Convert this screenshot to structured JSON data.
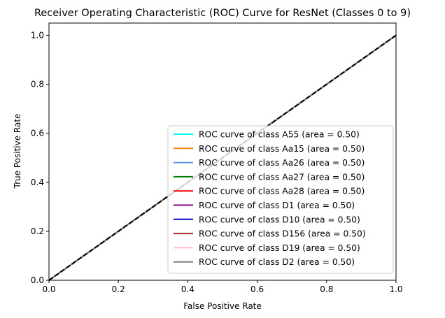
{
  "chart_data": {
    "type": "line",
    "title": "Receiver Operating Characteristic (ROC) Curve for ResNet (Classes 0 to 9)",
    "xlabel": "False Positive Rate",
    "ylabel": "True Positive Rate",
    "xlim": [
      0.0,
      1.0
    ],
    "ylim": [
      0.0,
      1.05
    ],
    "xticks": [
      "0.0",
      "0.2",
      "0.4",
      "0.6",
      "0.8",
      "1.0"
    ],
    "yticks": [
      "0.0",
      "0.2",
      "0.4",
      "0.6",
      "0.8",
      "1.0"
    ],
    "grid": false,
    "legend_position": "lower-right",
    "series": [
      {
        "name": "ROC curve of class A55 (area = 0.50)",
        "color": "#00ffff",
        "x": [
          0,
          1
        ],
        "y": [
          0,
          1
        ]
      },
      {
        "name": "ROC curve of class Aa15 (area = 0.50)",
        "color": "#ff8c00",
        "x": [
          0,
          1
        ],
        "y": [
          0,
          1
        ]
      },
      {
        "name": "ROC curve of class Aa26 (area = 0.50)",
        "color": "#6495ed",
        "x": [
          0,
          1
        ],
        "y": [
          0,
          1
        ]
      },
      {
        "name": "ROC curve of class Aa27 (area = 0.50)",
        "color": "#008000",
        "x": [
          0,
          1
        ],
        "y": [
          0,
          1
        ]
      },
      {
        "name": "ROC curve of class Aa28 (area = 0.50)",
        "color": "#ff0000",
        "x": [
          0,
          1
        ],
        "y": [
          0,
          1
        ]
      },
      {
        "name": "ROC curve of class D1 (area = 0.50)",
        "color": "#800080",
        "x": [
          0,
          1
        ],
        "y": [
          0,
          1
        ]
      },
      {
        "name": "ROC curve of class D10 (area = 0.50)",
        "color": "#0000cd",
        "x": [
          0,
          1
        ],
        "y": [
          0,
          1
        ]
      },
      {
        "name": "ROC curve of class D156 (area = 0.50)",
        "color": "#a52a2a",
        "x": [
          0,
          1
        ],
        "y": [
          0,
          1
        ]
      },
      {
        "name": "ROC curve of class D19 (area = 0.50)",
        "color": "#ffc0cb",
        "x": [
          0,
          1
        ],
        "y": [
          0,
          1
        ]
      },
      {
        "name": "ROC curve of class D2 (area = 0.50)",
        "color": "#808080",
        "x": [
          0,
          1
        ],
        "y": [
          0,
          1
        ]
      }
    ],
    "reference_line": {
      "x": [
        0,
        1
      ],
      "y": [
        0,
        1
      ],
      "color": "#000000",
      "style": "dashed"
    }
  }
}
